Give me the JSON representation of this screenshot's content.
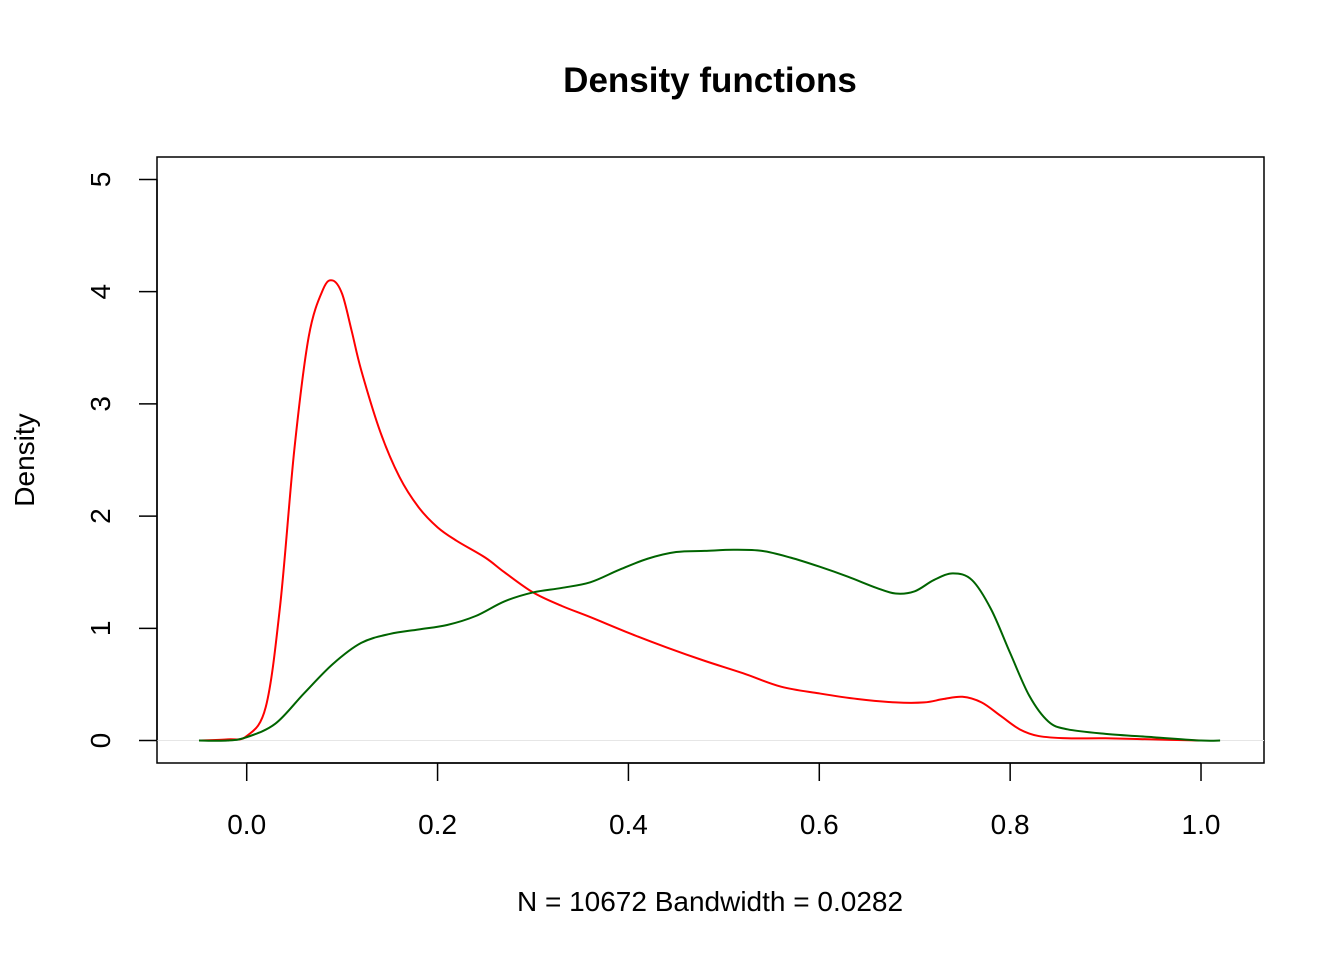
{
  "chart_data": {
    "type": "line",
    "title": "Density functions",
    "xlabel": "N = 10672   Bandwidth = 0.0282",
    "ylabel": "Density",
    "xlim": [
      -0.094,
      1.066
    ],
    "ylim": [
      -0.2,
      5.2
    ],
    "x_ticks": [
      0.0,
      0.2,
      0.4,
      0.6,
      0.8,
      1.0
    ],
    "x_tick_labels": [
      "0.0",
      "0.2",
      "0.4",
      "0.6",
      "0.8",
      "1.0"
    ],
    "y_ticks": [
      0,
      1,
      2,
      3,
      4,
      5
    ],
    "y_tick_labels": [
      "0",
      "1",
      "2",
      "3",
      "4",
      "5"
    ],
    "grid": false,
    "legend": "none",
    "zero_reference_line": true,
    "series": [
      {
        "color": "#ff0000",
        "x": [
          -0.05,
          -0.02,
          0.0,
          0.02,
          0.035,
          0.05,
          0.065,
          0.08,
          0.09,
          0.1,
          0.11,
          0.12,
          0.14,
          0.16,
          0.18,
          0.2,
          0.22,
          0.25,
          0.27,
          0.3,
          0.33,
          0.36,
          0.4,
          0.44,
          0.48,
          0.52,
          0.56,
          0.6,
          0.64,
          0.68,
          0.71,
          0.73,
          0.75,
          0.77,
          0.79,
          0.81,
          0.83,
          0.86,
          0.9,
          0.95,
          1.0
        ],
        "y": [
          0.0,
          0.01,
          0.04,
          0.3,
          1.2,
          2.6,
          3.6,
          4.02,
          4.1,
          3.98,
          3.65,
          3.3,
          2.75,
          2.35,
          2.08,
          1.9,
          1.78,
          1.63,
          1.5,
          1.32,
          1.2,
          1.1,
          0.96,
          0.83,
          0.71,
          0.6,
          0.48,
          0.42,
          0.37,
          0.34,
          0.34,
          0.37,
          0.39,
          0.34,
          0.22,
          0.1,
          0.04,
          0.02,
          0.02,
          0.01,
          0.0
        ]
      },
      {
        "color": "#006400",
        "x": [
          -0.05,
          -0.02,
          0.0,
          0.03,
          0.06,
          0.09,
          0.12,
          0.15,
          0.18,
          0.21,
          0.24,
          0.27,
          0.3,
          0.33,
          0.36,
          0.39,
          0.42,
          0.45,
          0.48,
          0.51,
          0.54,
          0.57,
          0.6,
          0.63,
          0.66,
          0.68,
          0.7,
          0.72,
          0.74,
          0.76,
          0.78,
          0.8,
          0.82,
          0.84,
          0.86,
          0.9,
          0.95,
          1.0,
          1.02
        ],
        "y": [
          0.0,
          0.0,
          0.03,
          0.15,
          0.42,
          0.68,
          0.87,
          0.95,
          0.99,
          1.03,
          1.11,
          1.24,
          1.32,
          1.36,
          1.41,
          1.52,
          1.62,
          1.68,
          1.69,
          1.7,
          1.69,
          1.63,
          1.55,
          1.46,
          1.36,
          1.31,
          1.33,
          1.43,
          1.49,
          1.43,
          1.17,
          0.78,
          0.4,
          0.17,
          0.1,
          0.06,
          0.03,
          0.0,
          0.0
        ]
      }
    ]
  }
}
